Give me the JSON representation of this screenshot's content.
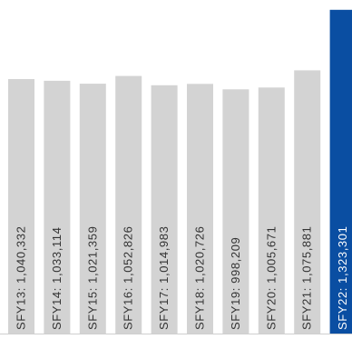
{
  "chart_data": {
    "type": "bar",
    "orientation": "vertical",
    "categories": [
      "SFY13",
      "SFY14",
      "SFY15",
      "SFY16",
      "SFY17",
      "SFY18",
      "SFY19",
      "SFY20",
      "SFY21",
      "SFY22"
    ],
    "values": [
      1040332,
      1033114,
      1021359,
      1052826,
      1014983,
      1020726,
      998209,
      1005671,
      1075881,
      1323301
    ],
    "labels": [
      "SFY13: 1,040,332",
      "SFY14: 1,033,114",
      "SFY15: 1,021,359",
      "SFY16: 1,052,826",
      "SFY17: 1,014,983",
      "SFY18: 1,020,726",
      "SFY19: 998,209",
      "SFY20: 1,005,671",
      "SFY21: 1,075,881",
      "SFY22: 1,323,301"
    ],
    "colors": {
      "default_bar": "#d3d3d3",
      "highlight_bar": "#0a4ea2",
      "default_label": "#333333",
      "highlight_label": "#ffffff",
      "baseline": "#cfcfcf"
    },
    "highlight_index": 9,
    "title": "",
    "xlabel": "",
    "ylabel": ""
  }
}
